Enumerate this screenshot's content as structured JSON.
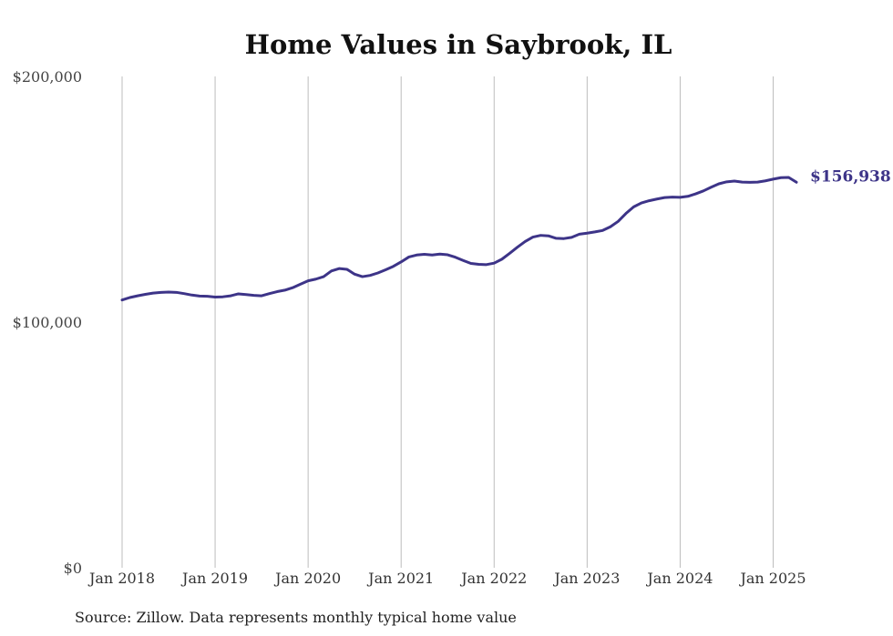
{
  "chart_data": {
    "type": "line",
    "title": "Home Values in Saybrook, IL",
    "xlabel": "",
    "ylabel": "",
    "ylim": [
      0,
      200000
    ],
    "y_ticks": [
      {
        "value": 0,
        "label": "$0"
      },
      {
        "value": 100000,
        "label": "$100,000"
      },
      {
        "value": 200000,
        "label": "$200,000"
      }
    ],
    "x_range": [
      "2018-01",
      "2025-04"
    ],
    "x_ticks": [
      {
        "date": "2018-01",
        "label": "Jan 2018"
      },
      {
        "date": "2019-01",
        "label": "Jan 2019"
      },
      {
        "date": "2020-01",
        "label": "Jan 2020"
      },
      {
        "date": "2021-01",
        "label": "Jan 2021"
      },
      {
        "date": "2022-01",
        "label": "Jan 2022"
      },
      {
        "date": "2023-01",
        "label": "Jan 2023"
      },
      {
        "date": "2024-01",
        "label": "Jan 2024"
      },
      {
        "date": "2025-01",
        "label": "Jan 2025"
      }
    ],
    "grid": {
      "vertical": true,
      "horizontal": false
    },
    "legend": "none",
    "line_color": "#3d3488",
    "end_label": "$156,938",
    "series": [
      {
        "x": [
          "2018-01",
          "2018-02",
          "2018-03",
          "2018-04",
          "2018-05",
          "2018-06",
          "2018-07",
          "2018-08",
          "2018-09",
          "2018-10",
          "2018-11",
          "2018-12",
          "2019-01",
          "2019-02",
          "2019-03",
          "2019-04",
          "2019-05",
          "2019-06",
          "2019-07",
          "2019-08",
          "2019-09",
          "2019-10",
          "2019-11",
          "2019-12",
          "2020-01",
          "2020-02",
          "2020-03",
          "2020-04",
          "2020-05",
          "2020-06",
          "2020-07",
          "2020-08",
          "2020-09",
          "2020-10",
          "2020-11",
          "2020-12",
          "2021-01",
          "2021-02",
          "2021-03",
          "2021-04",
          "2021-05",
          "2021-06",
          "2021-07",
          "2021-08",
          "2021-09",
          "2021-10",
          "2021-11",
          "2021-12",
          "2022-01",
          "2022-02",
          "2022-03",
          "2022-04",
          "2022-05",
          "2022-06",
          "2022-07",
          "2022-08",
          "2022-09",
          "2022-10",
          "2022-11",
          "2022-12",
          "2023-01",
          "2023-02",
          "2023-03",
          "2023-04",
          "2023-05",
          "2023-06",
          "2023-07",
          "2023-08",
          "2023-09",
          "2023-10",
          "2023-11",
          "2023-12",
          "2024-01",
          "2024-02",
          "2024-03",
          "2024-04",
          "2024-05",
          "2024-06",
          "2024-07",
          "2024-08",
          "2024-09",
          "2024-10",
          "2024-11",
          "2024-12",
          "2025-01",
          "2025-02",
          "2025-03",
          "2025-04"
        ],
        "values": [
          109000,
          110000,
          110700,
          111300,
          111800,
          112100,
          112200,
          112100,
          111600,
          111000,
          110600,
          110500,
          110200,
          110300,
          110700,
          111500,
          111200,
          110900,
          110700,
          111600,
          112400,
          113000,
          114000,
          115400,
          116800,
          117500,
          118500,
          120800,
          121800,
          121500,
          119500,
          118500,
          119000,
          120000,
          121300,
          122700,
          124500,
          126500,
          127300,
          127600,
          127300,
          127700,
          127400,
          126400,
          125100,
          123900,
          123500,
          123400,
          124000,
          125600,
          128000,
          130500,
          132800,
          134600,
          135300,
          135100,
          134100,
          134000,
          134500,
          135800,
          136200,
          136700,
          137300,
          138800,
          141000,
          144200,
          146900,
          148500,
          149400,
          150100,
          150700,
          150900,
          150800,
          151200,
          152200,
          153400,
          154900,
          156300,
          157100,
          157400,
          157000,
          156900,
          157000,
          157500,
          158200,
          158800,
          158900,
          156938
        ]
      }
    ]
  },
  "source": "Source: Zillow. Data represents monthly typical home value"
}
